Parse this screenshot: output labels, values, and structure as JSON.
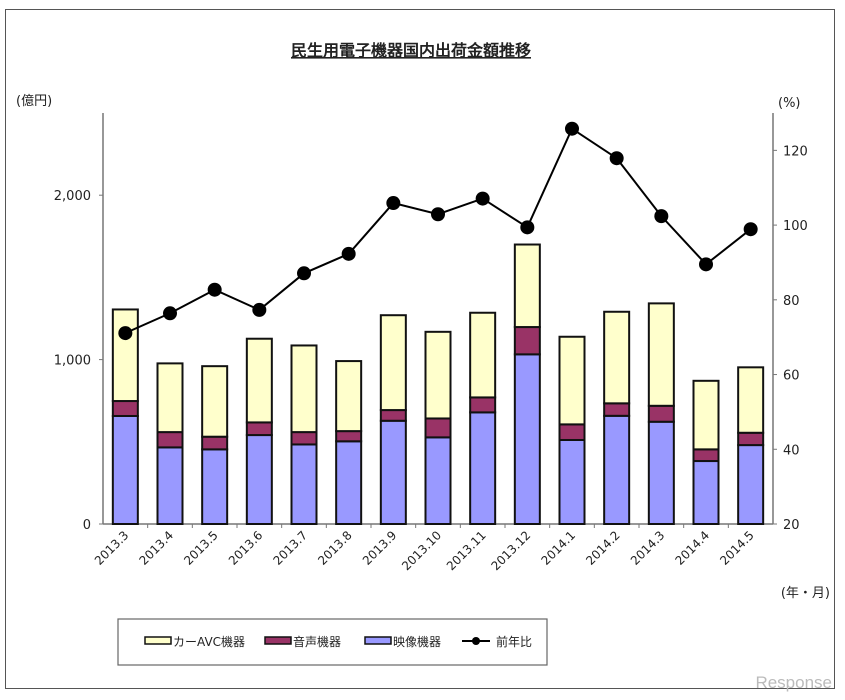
{
  "chart_data": {
    "type": "bar",
    "stacked": true,
    "title": "民生用電子機器国内出荷金額推移",
    "ylabel_left": "(億円)",
    "ylabel_right": "(%)",
    "xlabel": "(年・月)",
    "ylim_left": [
      0,
      2500
    ],
    "ylim_right": [
      20,
      130
    ],
    "yticks_left": [
      {
        "v": 0,
        "label": "0"
      },
      {
        "v": 1000,
        "label": "1,000"
      },
      {
        "v": 2000,
        "label": "2,000"
      }
    ],
    "yticks_right": [
      {
        "v": 20,
        "label": "20"
      },
      {
        "v": 40,
        "label": "40"
      },
      {
        "v": 60,
        "label": "60"
      },
      {
        "v": 80,
        "label": "80"
      },
      {
        "v": 100,
        "label": "100"
      },
      {
        "v": 120,
        "label": "120"
      }
    ],
    "grid": false,
    "legend_position": "bottom",
    "categories": [
      "2013.3",
      "2013.4",
      "2013.5",
      "2013.6",
      "2013.7",
      "2013.8",
      "2013.9",
      "2013.10",
      "2013.11",
      "2013.12",
      "2014.1",
      "2014.2",
      "2014.3",
      "2014.4",
      "2014.5"
    ],
    "series": [
      {
        "name": "映像機器",
        "type": "bar",
        "axis": "left",
        "color": "#9999ff",
        "values": [
          657,
          466,
          454,
          541,
          484,
          503,
          628,
          527,
          679,
          1032,
          511,
          658,
          622,
          383,
          480
        ]
      },
      {
        "name": "音声機器",
        "type": "bar",
        "axis": "left",
        "color": "#993366",
        "values": [
          91,
          93,
          77,
          77,
          75,
          62,
          65,
          115,
          91,
          166,
          95,
          76,
          97,
          71,
          75
        ]
      },
      {
        "name": "カーAVC機器",
        "type": "bar",
        "axis": "left",
        "color": "#ffffcc",
        "values": [
          557,
          418,
          429,
          509,
          527,
          426,
          577,
          527,
          515,
          502,
          533,
          557,
          623,
          417,
          398
        ]
      },
      {
        "name": "前年比",
        "type": "line",
        "axis": "right",
        "color": "#000000",
        "values": [
          71.1,
          76.4,
          82.7,
          77.3,
          87.1,
          92.3,
          105.9,
          102.9,
          107.1,
          99.4,
          125.8,
          117.9,
          102.4,
          89.5,
          98.9
        ]
      }
    ],
    "legend_order": [
      "カーAVC機器",
      "音声機器",
      "映像機器",
      "前年比"
    ]
  },
  "watermark": "Response"
}
